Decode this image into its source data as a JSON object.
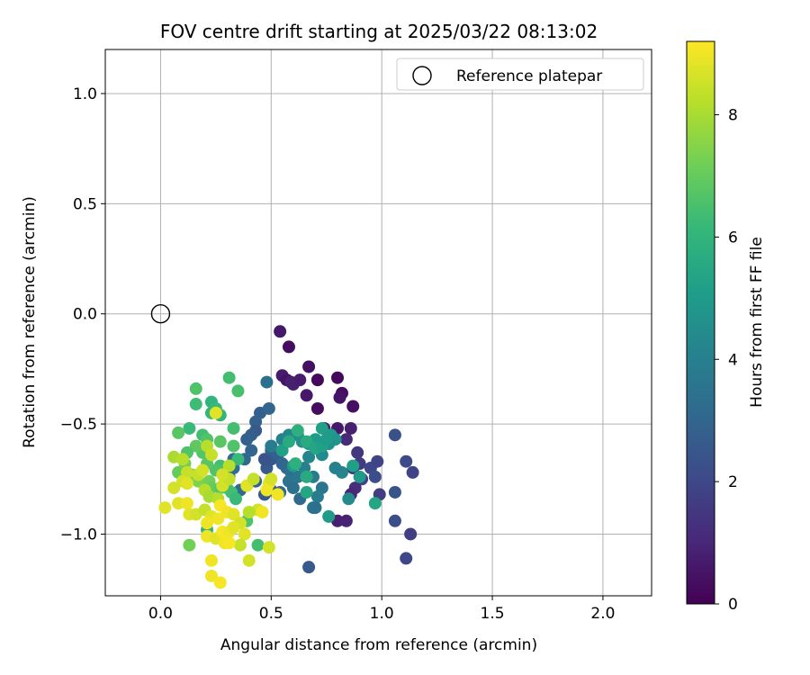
{
  "chart_data": {
    "type": "scatter",
    "title": "FOV centre drift starting at 2025/03/22 08:13:02",
    "xlabel": "Angular distance from reference (arcmin)",
    "ylabel": "Rotation from reference (arcmin)",
    "xlim": [
      -0.25,
      2.22
    ],
    "ylim": [
      -1.28,
      1.2
    ],
    "xticks": [
      0.0,
      0.5,
      1.0,
      1.5,
      2.0
    ],
    "xtick_labels": [
      "0.0",
      "0.5",
      "1.0",
      "1.5",
      "2.0"
    ],
    "yticks": [
      1.0,
      0.5,
      0.0,
      -0.5,
      -1.0
    ],
    "ytick_labels": [
      "1.0",
      "0.5",
      "0.0",
      "−0.5",
      "−1.0"
    ],
    "grid": true,
    "legend": {
      "placement": "upper right",
      "label": "Reference platepar"
    },
    "reference_point": {
      "x": 0.0,
      "y": 0.0
    },
    "colorbar": {
      "label": "Hours from first FF file",
      "min": 0,
      "max": 9.2,
      "ticks": [
        0,
        2,
        4,
        6,
        8
      ],
      "tick_labels": [
        "0",
        "2",
        "4",
        "6",
        "8"
      ],
      "colormap": "viridis"
    },
    "points": [
      [
        0.54,
        -0.08,
        0.6
      ],
      [
        0.58,
        -0.15,
        0.3
      ],
      [
        0.55,
        -0.28,
        0.7
      ],
      [
        0.57,
        -0.3,
        0.5
      ],
      [
        0.6,
        -0.32,
        0.9
      ],
      [
        0.59,
        -0.31,
        0.8
      ],
      [
        0.63,
        -0.3,
        0.7
      ],
      [
        0.67,
        -0.24,
        0.4
      ],
      [
        0.71,
        -0.3,
        0.2
      ],
      [
        0.66,
        -0.37,
        0.6
      ],
      [
        0.8,
        -0.29,
        0.2
      ],
      [
        0.82,
        -0.36,
        0.3
      ],
      [
        0.81,
        -0.38,
        0.5
      ],
      [
        0.87,
        -0.42,
        0.4
      ],
      [
        0.71,
        -0.43,
        0.3
      ],
      [
        0.8,
        -0.52,
        0.6
      ],
      [
        0.74,
        -0.52,
        0.7
      ],
      [
        0.77,
        -0.56,
        0.9
      ],
      [
        0.84,
        -0.57,
        1.1
      ],
      [
        0.86,
        -0.52,
        0.8
      ],
      [
        0.89,
        -0.63,
        1.5
      ],
      [
        0.87,
        -0.7,
        1.4
      ],
      [
        0.9,
        -0.68,
        1.6
      ],
      [
        0.91,
        -0.75,
        1.8
      ],
      [
        0.95,
        -0.7,
        2.0
      ],
      [
        0.98,
        -0.67,
        1.9
      ],
      [
        0.97,
        -0.74,
        2.2
      ],
      [
        0.88,
        -0.79,
        1.2
      ],
      [
        0.86,
        -0.82,
        1.0
      ],
      [
        0.8,
        -0.94,
        0.8
      ],
      [
        0.84,
        -0.94,
        0.9
      ],
      [
        0.99,
        -0.82,
        1.7
      ],
      [
        1.06,
        -0.55,
        2.3
      ],
      [
        1.11,
        -0.67,
        2.1
      ],
      [
        1.14,
        -0.72,
        1.9
      ],
      [
        1.06,
        -0.81,
        2.4
      ],
      [
        1.06,
        -0.94,
        2.2
      ],
      [
        1.13,
        -1.0,
        1.7
      ],
      [
        1.11,
        -1.11,
        2.0
      ],
      [
        0.67,
        -1.15,
        2.6
      ],
      [
        0.45,
        -0.45,
        2.8
      ],
      [
        0.49,
        -0.43,
        3.0
      ],
      [
        0.48,
        -0.31,
        3.4
      ],
      [
        0.43,
        -0.49,
        2.9
      ],
      [
        0.43,
        -0.53,
        2.6
      ],
      [
        0.41,
        -0.55,
        2.7
      ],
      [
        0.39,
        -0.57,
        2.8
      ],
      [
        0.41,
        -0.62,
        3.0
      ],
      [
        0.38,
        -0.66,
        3.1
      ],
      [
        0.33,
        -0.66,
        3.2
      ],
      [
        0.33,
        -0.7,
        3.3
      ],
      [
        0.31,
        -0.74,
        3.0
      ],
      [
        0.36,
        -0.8,
        3.2
      ],
      [
        0.43,
        -0.76,
        2.9
      ],
      [
        0.48,
        -0.7,
        2.6
      ],
      [
        0.5,
        -0.66,
        2.5
      ],
      [
        0.47,
        -0.66,
        2.4
      ],
      [
        0.5,
        -0.62,
        2.7
      ],
      [
        0.53,
        -0.64,
        2.8
      ],
      [
        0.55,
        -0.68,
        3.0
      ],
      [
        0.57,
        -0.7,
        3.1
      ],
      [
        0.59,
        -0.72,
        3.3
      ],
      [
        0.58,
        -0.76,
        3.5
      ],
      [
        0.62,
        -0.74,
        3.6
      ],
      [
        0.6,
        -0.79,
        3.4
      ],
      [
        0.63,
        -0.84,
        3.2
      ],
      [
        0.54,
        -0.81,
        3.0
      ],
      [
        0.5,
        -0.8,
        2.8
      ],
      [
        0.47,
        -0.82,
        2.6
      ],
      [
        0.5,
        -0.6,
        3.8
      ],
      [
        0.55,
        -0.57,
        4.0
      ],
      [
        0.58,
        -0.55,
        4.2
      ],
      [
        0.62,
        -0.55,
        4.4
      ],
      [
        0.64,
        -0.58,
        4.6
      ],
      [
        0.67,
        -0.59,
        4.8
      ],
      [
        0.7,
        -0.57,
        5.0
      ],
      [
        0.73,
        -0.52,
        5.2
      ],
      [
        0.77,
        -0.55,
        5.0
      ],
      [
        0.79,
        -0.57,
        4.8
      ],
      [
        0.76,
        -0.59,
        4.6
      ],
      [
        0.73,
        -0.64,
        4.4
      ],
      [
        0.67,
        -0.65,
        4.2
      ],
      [
        0.65,
        -0.7,
        4.0
      ],
      [
        0.69,
        -0.74,
        3.8
      ],
      [
        0.73,
        -0.79,
        3.6
      ],
      [
        0.71,
        -0.83,
        3.8
      ],
      [
        0.69,
        -0.88,
        3.6
      ],
      [
        0.7,
        -0.88,
        3.4
      ],
      [
        0.76,
        -0.92,
        5.0
      ],
      [
        0.85,
        -0.84,
        4.4
      ],
      [
        0.82,
        -0.72,
        4.2
      ],
      [
        0.79,
        -0.7,
        4.0
      ],
      [
        0.87,
        -0.69,
        5.2
      ],
      [
        0.9,
        -0.74,
        5.0
      ],
      [
        0.97,
        -0.86,
        5.4
      ],
      [
        0.6,
        -0.69,
        5.0
      ],
      [
        0.55,
        -0.62,
        5.2
      ],
      [
        0.58,
        -0.58,
        5.6
      ],
      [
        0.62,
        -0.53,
        5.8
      ],
      [
        0.66,
        -0.58,
        5.6
      ],
      [
        0.7,
        -0.61,
        5.4
      ],
      [
        0.73,
        -0.6,
        5.2
      ],
      [
        0.75,
        -0.57,
        5.0
      ],
      [
        0.66,
        -0.74,
        5.6
      ],
      [
        0.66,
        -0.81,
        5.4
      ],
      [
        0.61,
        -0.68,
        5.8
      ],
      [
        0.23,
        -0.4,
        6.0
      ],
      [
        0.25,
        -0.43,
        6.2
      ],
      [
        0.23,
        -0.45,
        6.1
      ],
      [
        0.27,
        -0.46,
        6.0
      ],
      [
        0.31,
        -0.29,
        6.4
      ],
      [
        0.35,
        -0.35,
        6.5
      ],
      [
        0.16,
        -0.34,
        6.6
      ],
      [
        0.16,
        -0.41,
        6.3
      ],
      [
        0.13,
        -0.52,
        6.2
      ],
      [
        0.19,
        -0.55,
        6.4
      ],
      [
        0.21,
        -0.57,
        6.6
      ],
      [
        0.27,
        -0.58,
        6.8
      ],
      [
        0.33,
        -0.52,
        6.4
      ],
      [
        0.33,
        -0.6,
        6.6
      ],
      [
        0.35,
        -0.66,
        6.2
      ],
      [
        0.27,
        -0.69,
        6.4
      ],
      [
        0.25,
        -0.71,
        6.6
      ],
      [
        0.21,
        -0.68,
        6.8
      ],
      [
        0.19,
        -0.63,
        6.7
      ],
      [
        0.16,
        -0.6,
        6.9
      ],
      [
        0.12,
        -0.63,
        6.6
      ],
      [
        0.08,
        -0.54,
        6.8
      ],
      [
        0.08,
        -0.72,
        7.0
      ],
      [
        0.11,
        -0.68,
        7.2
      ],
      [
        0.14,
        -0.73,
        7.3
      ],
      [
        0.17,
        -0.76,
        7.4
      ],
      [
        0.22,
        -0.76,
        7.2
      ],
      [
        0.23,
        -0.79,
        7.0
      ],
      [
        0.27,
        -0.79,
        6.8
      ],
      [
        0.3,
        -0.79,
        6.6
      ],
      [
        0.32,
        -0.81,
        6.4
      ],
      [
        0.34,
        -0.84,
        6.2
      ],
      [
        0.21,
        -0.98,
        6.0
      ],
      [
        0.44,
        -1.05,
        6.4
      ],
      [
        0.39,
        -0.94,
        6.6
      ],
      [
        0.13,
        -1.05,
        7.2
      ],
      [
        0.25,
        -0.45,
        8.8
      ],
      [
        0.06,
        -0.65,
        8.0
      ],
      [
        0.1,
        -0.66,
        8.2
      ],
      [
        0.12,
        -0.72,
        8.4
      ],
      [
        0.1,
        -0.76,
        8.6
      ],
      [
        0.12,
        -0.77,
        8.8
      ],
      [
        0.17,
        -0.73,
        8.4
      ],
      [
        0.19,
        -0.71,
        8.6
      ],
      [
        0.21,
        -0.6,
        8.2
      ],
      [
        0.23,
        -0.64,
        8.4
      ],
      [
        0.2,
        -0.8,
        8.2
      ],
      [
        0.22,
        -0.83,
        8.0
      ],
      [
        0.26,
        -0.84,
        8.2
      ],
      [
        0.28,
        -0.78,
        8.6
      ],
      [
        0.31,
        -0.75,
        8.4
      ],
      [
        0.31,
        -0.69,
        8.2
      ],
      [
        0.28,
        -0.73,
        8.6
      ],
      [
        0.06,
        -0.79,
        8.6
      ],
      [
        0.08,
        -0.86,
        8.8
      ],
      [
        0.12,
        -0.86,
        9.0
      ],
      [
        0.13,
        -0.91,
        8.8
      ],
      [
        0.16,
        -0.91,
        8.6
      ],
      [
        0.2,
        -0.89,
        8.4
      ],
      [
        0.23,
        -0.92,
        8.8
      ],
      [
        0.26,
        -0.93,
        9.0
      ],
      [
        0.27,
        -0.87,
        9.1
      ],
      [
        0.3,
        -0.9,
        9.0
      ],
      [
        0.33,
        -0.91,
        8.8
      ],
      [
        0.36,
        -0.95,
        8.6
      ],
      [
        0.38,
        -1.0,
        8.8
      ],
      [
        0.36,
        -1.05,
        8.4
      ],
      [
        0.4,
        -1.12,
        8.6
      ],
      [
        0.23,
        -1.12,
        9.0
      ],
      [
        0.23,
        -1.19,
        9.0
      ],
      [
        0.27,
        -1.22,
        9.1
      ],
      [
        0.21,
        -0.95,
        9.0
      ],
      [
        0.21,
        -1.01,
        9.0
      ],
      [
        0.25,
        -1.02,
        8.8
      ],
      [
        0.29,
        -1.04,
        9.0
      ],
      [
        0.31,
        -1.04,
        9.1
      ],
      [
        0.28,
        -0.99,
        9.1
      ],
      [
        0.31,
        -0.99,
        9.0
      ],
      [
        0.33,
        -0.97,
        8.8
      ],
      [
        0.02,
        -0.88,
        8.8
      ],
      [
        0.39,
        -0.78,
        8.8
      ],
      [
        0.42,
        -0.75,
        8.4
      ],
      [
        0.44,
        -0.89,
        8.6
      ],
      [
        0.46,
        -0.9,
        9.0
      ],
      [
        0.49,
        -0.77,
        8.8
      ],
      [
        0.48,
        -0.8,
        9.0
      ],
      [
        0.5,
        -0.75,
        8.6
      ],
      [
        0.53,
        -0.82,
        9.0
      ],
      [
        0.4,
        -0.9,
        8.2
      ],
      [
        0.49,
        -1.06,
        8.6
      ]
    ]
  }
}
